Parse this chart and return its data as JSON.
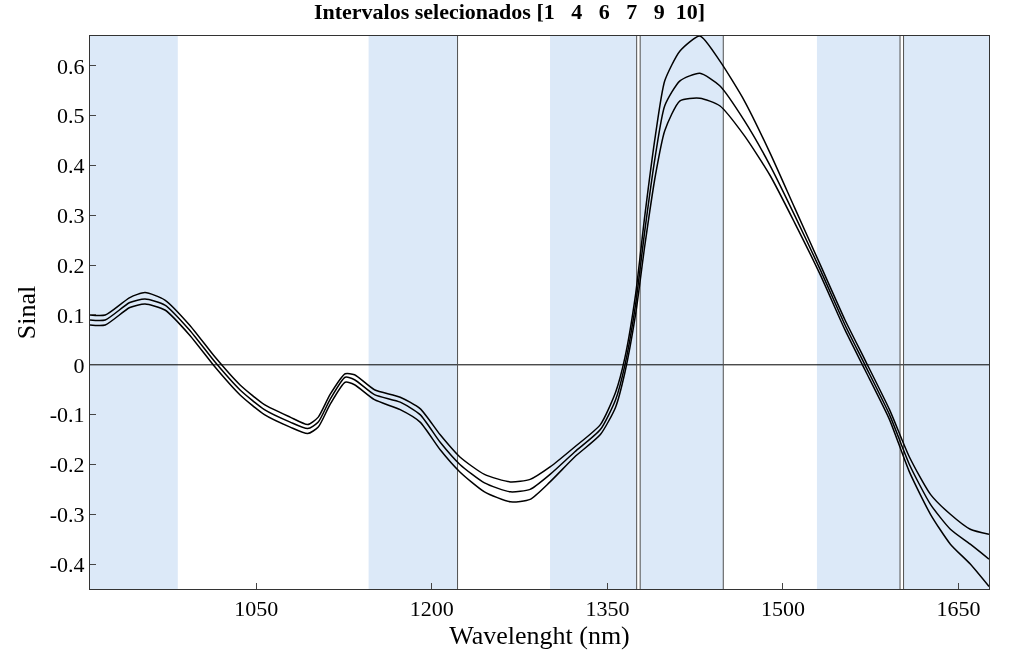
{
  "chart_data": {
    "type": "line",
    "title": "Intervalos selecionados [1   4   6   7   9  10]",
    "xlabel": "Wavelenght (nm)",
    "ylabel": "Sinal",
    "x": [
      908,
      921,
      942,
      955,
      972,
      993,
      1015,
      1036,
      1057,
      1079,
      1094,
      1103,
      1113,
      1126,
      1134,
      1151,
      1173,
      1190,
      1207,
      1224,
      1245,
      1267,
      1284,
      1301,
      1322,
      1344,
      1357,
      1365,
      1374,
      1382,
      1391,
      1399,
      1412,
      1429,
      1446,
      1467,
      1489,
      1510,
      1532,
      1553,
      1570,
      1591,
      1608,
      1626,
      1643,
      1660,
      1676
    ],
    "series": [
      {
        "color": "#000000",
        "values": [
          0.1,
          0.1,
          0.135,
          0.145,
          0.13,
          0.08,
          0.015,
          -0.04,
          -0.08,
          -0.105,
          -0.12,
          -0.105,
          -0.06,
          -0.018,
          -0.02,
          -0.05,
          -0.065,
          -0.088,
          -0.14,
          -0.185,
          -0.22,
          -0.235,
          -0.23,
          -0.205,
          -0.165,
          -0.12,
          -0.055,
          0.015,
          0.14,
          0.3,
          0.46,
          0.57,
          0.63,
          0.66,
          0.61,
          0.53,
          0.425,
          0.315,
          0.2,
          0.09,
          0.01,
          -0.09,
          -0.185,
          -0.26,
          -0.3,
          -0.33,
          -0.34
        ]
      },
      {
        "color": "#000000",
        "values": [
          0.09,
          0.09,
          0.125,
          0.132,
          0.12,
          0.07,
          0.005,
          -0.05,
          -0.09,
          -0.115,
          -0.128,
          -0.115,
          -0.07,
          -0.025,
          -0.03,
          -0.06,
          -0.075,
          -0.1,
          -0.155,
          -0.2,
          -0.237,
          -0.255,
          -0.25,
          -0.22,
          -0.175,
          -0.13,
          -0.07,
          0.0,
          0.12,
          0.27,
          0.42,
          0.52,
          0.57,
          0.585,
          0.56,
          0.49,
          0.4,
          0.3,
          0.19,
          0.08,
          0.0,
          -0.1,
          -0.2,
          -0.28,
          -0.33,
          -0.36,
          -0.39
        ]
      },
      {
        "color": "#000000",
        "values": [
          0.08,
          0.08,
          0.115,
          0.122,
          0.11,
          0.06,
          -0.005,
          -0.06,
          -0.1,
          -0.125,
          -0.138,
          -0.125,
          -0.08,
          -0.035,
          -0.04,
          -0.07,
          -0.09,
          -0.115,
          -0.17,
          -0.215,
          -0.255,
          -0.275,
          -0.27,
          -0.235,
          -0.185,
          -0.14,
          -0.085,
          -0.015,
          0.1,
          0.24,
          0.38,
          0.47,
          0.53,
          0.535,
          0.52,
          0.46,
          0.38,
          0.285,
          0.18,
          0.07,
          -0.01,
          -0.11,
          -0.215,
          -0.3,
          -0.36,
          -0.4,
          -0.445
        ]
      }
    ],
    "xlim": [
      908,
      1676
    ],
    "xticks": [
      1050,
      1200,
      1350,
      1500,
      1650
    ],
    "ylim": [
      -0.45,
      0.66
    ],
    "yticks": [
      -0.4,
      -0.3,
      -0.2,
      -0.1,
      0,
      0.1,
      0.2,
      0.3,
      0.4,
      0.5,
      0.6
    ],
    "grid": false,
    "bands": [
      {
        "axis": "x",
        "from": 908,
        "to": 983,
        "color": "#dce9f8"
      },
      {
        "axis": "x",
        "from": 1146,
        "to": 1222,
        "color": "#dce9f8"
      },
      {
        "axis": "x",
        "from": 1301,
        "to": 1375,
        "color": "#dce9f8"
      },
      {
        "axis": "x",
        "from": 1378,
        "to": 1449,
        "color": "#dce9f8"
      },
      {
        "axis": "x",
        "from": 1529,
        "to": 1600,
        "color": "#dce9f8"
      },
      {
        "axis": "x",
        "from": 1603,
        "to": 1676,
        "color": "#dce9f8"
      }
    ],
    "ref_lines": [
      {
        "axis": "y",
        "value": 0,
        "color": "#000000"
      },
      {
        "axis": "x",
        "value": 1222,
        "color": "#505050"
      },
      {
        "axis": "x",
        "value": 1375,
        "color": "#505050"
      },
      {
        "axis": "x",
        "value": 1378,
        "color": "#505050"
      },
      {
        "axis": "x",
        "value": 1449,
        "color": "#505050"
      },
      {
        "axis": "x",
        "value": 1600,
        "color": "#505050"
      },
      {
        "axis": "x",
        "value": 1603,
        "color": "#505050"
      }
    ]
  }
}
